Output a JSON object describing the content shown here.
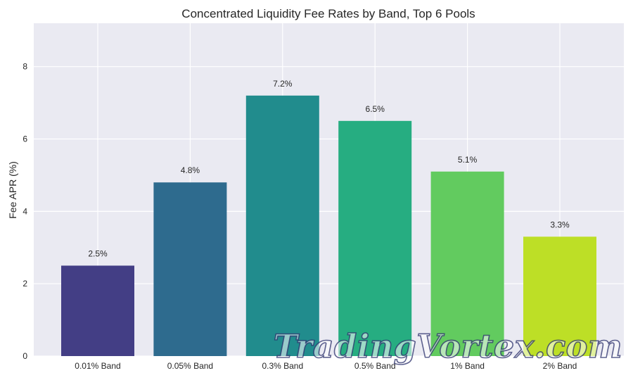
{
  "chart_data": {
    "type": "bar",
    "title": "Concentrated Liquidity Fee Rates by Band, Top 6 Pools",
    "xlabel": "",
    "ylabel": "Fee APR (%)",
    "categories": [
      "0.01% Band",
      "0.05% Band",
      "0.3% Band",
      "0.5% Band",
      "1% Band",
      "2% Band"
    ],
    "values": [
      2.5,
      4.8,
      7.2,
      6.5,
      5.1,
      3.3
    ],
    "data_labels": [
      "2.5%",
      "4.8%",
      "7.2%",
      "6.5%",
      "5.1%",
      "3.3%"
    ],
    "colors": [
      "#433e85",
      "#2e6b8e",
      "#218c8d",
      "#26ad81",
      "#62cb5f",
      "#bddf26"
    ],
    "ylim": [
      0,
      9.2
    ],
    "yticks": [
      0,
      2,
      4,
      6,
      8
    ],
    "grid": true,
    "background": "#eaeaf2"
  },
  "watermark": "TradingVortex.com"
}
